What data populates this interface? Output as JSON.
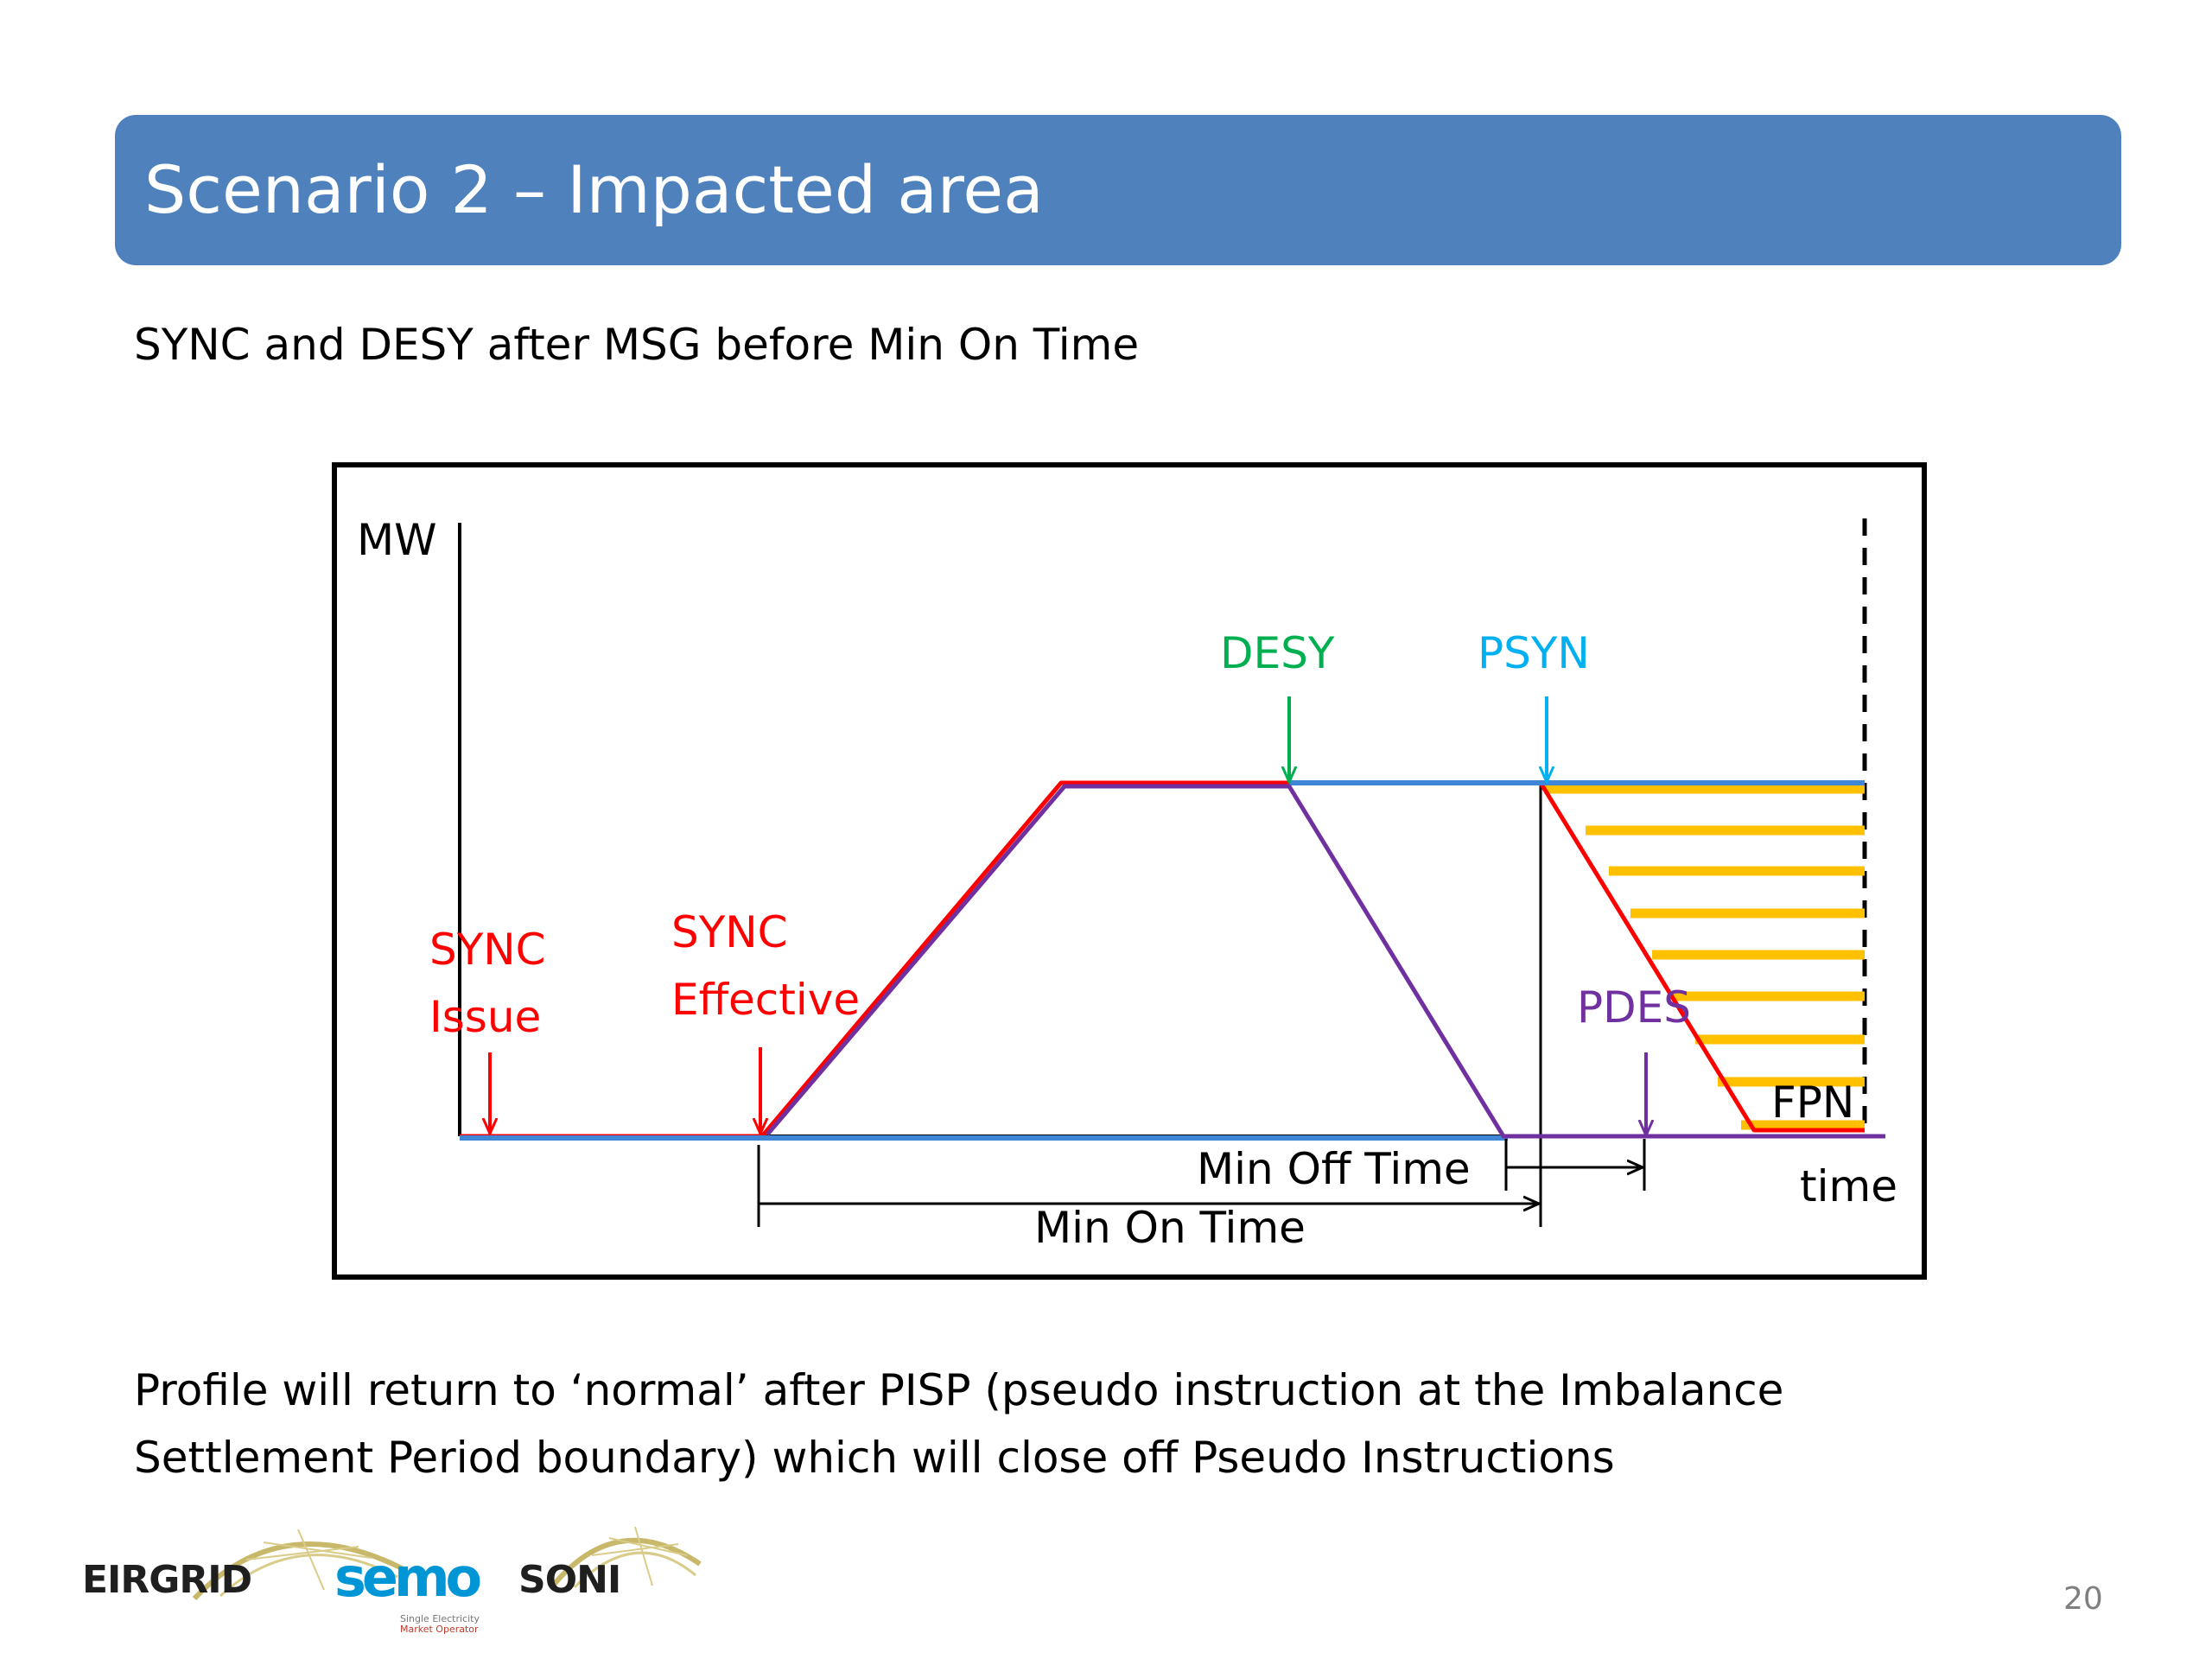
{
  "slide": {
    "title": "Scenario 2 – Impacted area",
    "subtitle": "SYNC and DESY after MSG before Min On Time",
    "note_line1": "Profile will return to ‘normal’ after PISP (pseudo instruction at the Imbalance",
    "note_line2": "Settlement Period boundary) which will close off Pseudo Instructions",
    "page_number": "20"
  },
  "diagram": {
    "labels": {
      "y_axis": "MW",
      "x_axis": "time",
      "sync_issue_1": "SYNC",
      "sync_issue_2": "Issue",
      "sync_effective_1": "SYNC",
      "sync_effective_2": "Effective",
      "desy": "DESY",
      "psyn": "PSYN",
      "pdes": "PDES",
      "fpn": "FPN",
      "min_off_time": "Min Off Time",
      "min_on_time": "Min On Time"
    },
    "colors": {
      "sync": "#FF0000",
      "desy": "#00B050",
      "psyn": "#00B0F0",
      "pdes": "#7030A0",
      "profile_blue": "#3F86D6",
      "fpn_hatch": "#FFC000",
      "frame": "#000000"
    }
  },
  "logos": {
    "eirgrid": "EIRGRID",
    "semo": "semo",
    "semo_tagline_1": "Single Electricity",
    "semo_tagline_2": "Market Operator",
    "soni": "SONI"
  }
}
